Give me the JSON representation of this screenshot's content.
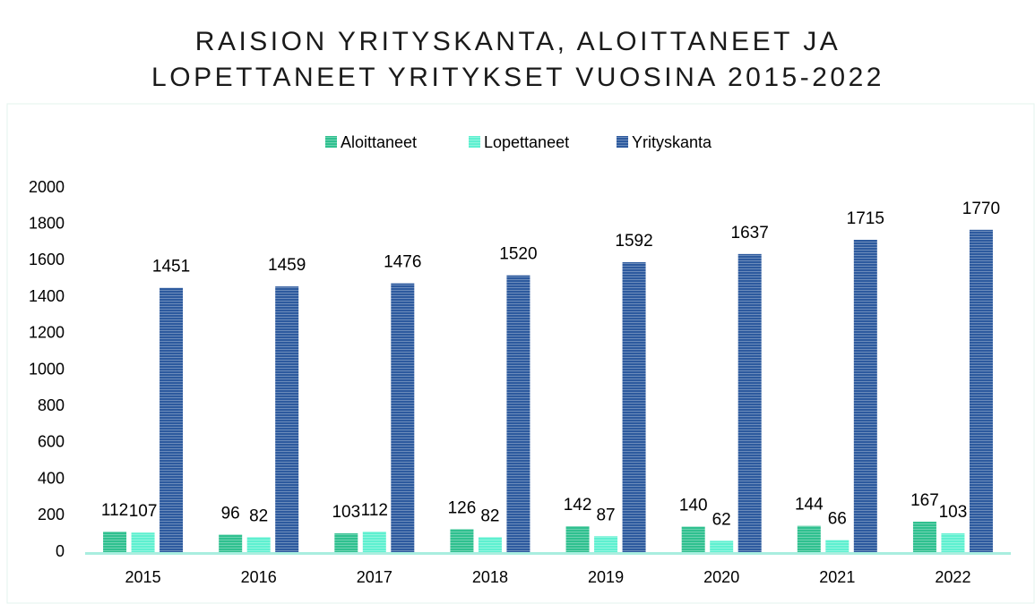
{
  "chart_data": {
    "type": "bar",
    "title": [
      "RAISION YRITYSKANTA, ALOITTANEET JA",
      "LOPETTANEET YRITYKSET VUOSINA 2015-2022"
    ],
    "categories": [
      "2015",
      "2016",
      "2017",
      "2018",
      "2019",
      "2020",
      "2021",
      "2022"
    ],
    "series": [
      {
        "name": "Aloittaneet",
        "color": "#2fc08f",
        "values": [
          112,
          96,
          103,
          126,
          142,
          140,
          144,
          167
        ]
      },
      {
        "name": "Lopettaneet",
        "color": "#5ef0d0",
        "values": [
          107,
          82,
          112,
          82,
          87,
          62,
          66,
          103
        ]
      },
      {
        "name": "Yrityskanta",
        "color": "#2d5a9e",
        "values": [
          1451,
          1459,
          1476,
          1520,
          1592,
          1637,
          1715,
          1770
        ]
      }
    ],
    "ylim": [
      0,
      2000
    ],
    "yticks": [
      0,
      200,
      400,
      600,
      800,
      1000,
      1200,
      1400,
      1600,
      1800,
      2000
    ],
    "grid": false,
    "legend": "top"
  }
}
